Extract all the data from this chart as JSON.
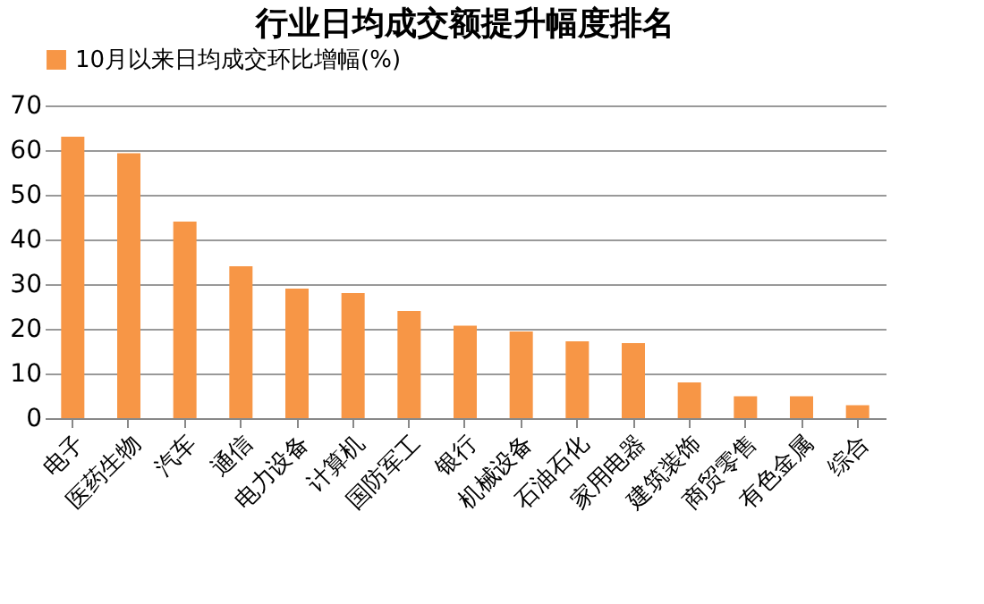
{
  "chart_data": {
    "type": "bar",
    "title": "行业日均成交额提升幅度排名",
    "categories": [
      "电子",
      "医药生物",
      "汽车",
      "通信",
      "电力设备",
      "计算机",
      "国防军工",
      "银行",
      "机械设备",
      "石油石化",
      "家用电器",
      "建筑装饰",
      "商贸零售",
      "有色金属",
      "综合"
    ],
    "series": [
      {
        "name": "10月以来日均成交环比增幅(%)",
        "color": "#f79646",
        "values": [
          63,
          59.3,
          44,
          34,
          29,
          28,
          24,
          20.7,
          19.4,
          17.2,
          16.8,
          8,
          4.9,
          4.9,
          2.9
        ]
      }
    ],
    "ylim": [
      0,
      70
    ],
    "yticks": [
      0,
      10,
      20,
      30,
      40,
      50,
      60,
      70
    ],
    "grid": "y",
    "legend": "top"
  }
}
